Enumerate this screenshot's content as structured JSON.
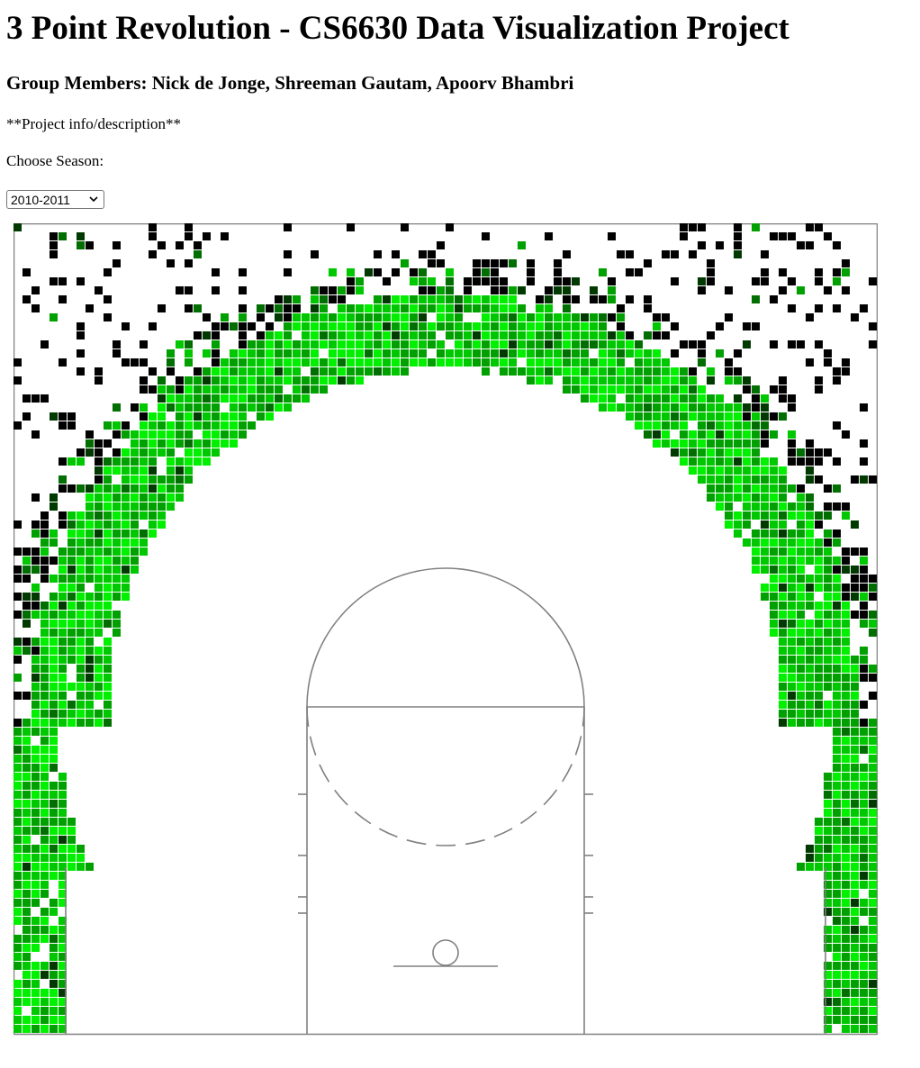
{
  "header": {
    "title": "3 Point Revolution - CS6630 Data Visualization Project",
    "members": "Group Members: Nick de Jonge, Shreeman Gautam, Apoorv Bhambri"
  },
  "content": {
    "info": "**Project info/description**",
    "choose_label": "Choose Season:"
  },
  "season_select": {
    "selected": "2010-2011"
  },
  "chart_data": {
    "type": "heatmap",
    "description_of_encoding": "",
    "colors": {
      "court_lines": "#808080",
      "bins": [
        "#000000",
        "#003a00",
        "#006e00",
        "#00a000",
        "#00c800",
        "#00f000"
      ]
    }
  }
}
